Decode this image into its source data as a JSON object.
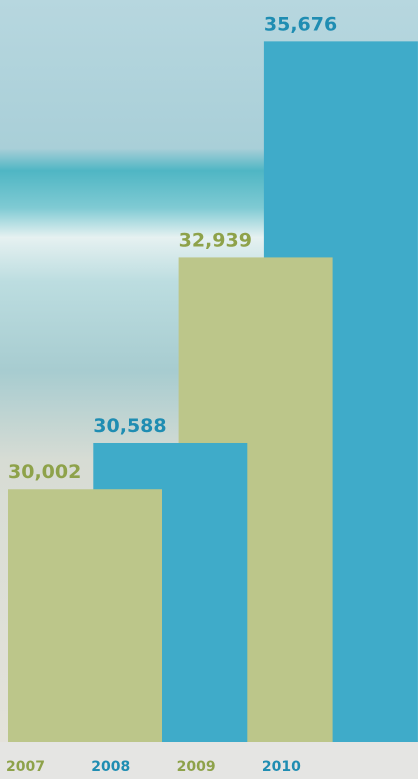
{
  "chart_data": {
    "type": "bar",
    "categories": [
      "2007",
      "2008",
      "2009",
      "2010"
    ],
    "values": [
      30002,
      30588,
      32939,
      35676
    ],
    "value_labels": [
      "30,002",
      "30,588",
      "32,939",
      "35,676"
    ],
    "colors": [
      "#bcc68a",
      "#3fabc9",
      "#bcc68a",
      "#3fabc9"
    ],
    "label_colors": [
      "#8ea24a",
      "#1f8db2",
      "#8ea24a",
      "#1f8db2"
    ],
    "ylim": [
      26800,
      36200
    ]
  }
}
